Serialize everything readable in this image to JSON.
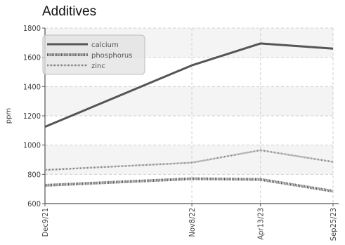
{
  "chart_data": {
    "type": "line",
    "title": "Additives",
    "xlabel": "",
    "ylabel": "ppm",
    "categories": [
      "Dec9/21",
      "Nov8/22",
      "Apr13/23",
      "Sep25/23"
    ],
    "x_dates": [
      "2021-12-09",
      "2022-11-08",
      "2023-04-13",
      "2023-09-25"
    ],
    "ylim": [
      600,
      1800
    ],
    "yticks": [
      600,
      800,
      1000,
      1200,
      1400,
      1600,
      1800
    ],
    "series": [
      {
        "name": "calcium",
        "values": [
          1125,
          1545,
          1695,
          1660
        ],
        "color": "#555555",
        "style": "solid"
      },
      {
        "name": "phosphorus",
        "values": [
          725,
          770,
          765,
          685
        ],
        "color": "#555555",
        "style": "dotted"
      },
      {
        "name": "zinc",
        "values": [
          830,
          880,
          965,
          885
        ],
        "color": "#777777",
        "style": "dashed"
      }
    ],
    "grid": true,
    "legend_position": "top-left"
  }
}
